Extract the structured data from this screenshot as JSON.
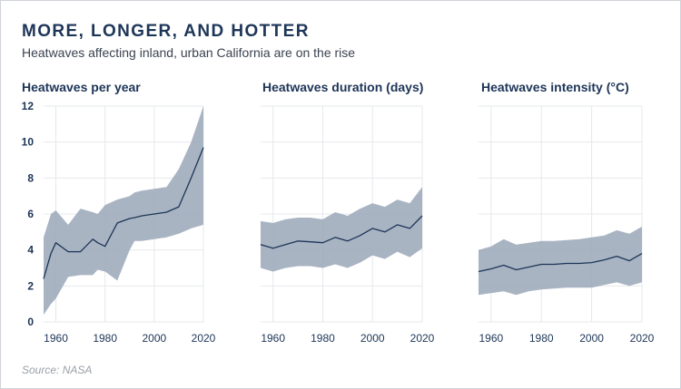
{
  "header": {
    "title": "MORE, LONGER, AND HOTTER",
    "subtitle": "Heatwaves affecting inland, urban California are on the rise"
  },
  "footer": {
    "source": "Source: NASA"
  },
  "colors": {
    "band": "#9aa7b8",
    "line": "#1d3557",
    "grid": "#e6e8eb",
    "text": "#1d3557"
  },
  "chart_data": [
    {
      "type": "area",
      "title": "Heatwaves per year",
      "xlim": [
        1955,
        2020
      ],
      "ylim": [
        0,
        12
      ],
      "xticks": [
        1960,
        1980,
        2000,
        2020
      ],
      "yticks": [
        0,
        2,
        4,
        6,
        8,
        10,
        12
      ],
      "show_yticks": true,
      "grid": true,
      "x": [
        1955,
        1958,
        1960,
        1965,
        1970,
        1975,
        1977,
        1980,
        1985,
        1990,
        1992,
        1995,
        2000,
        2005,
        2010,
        2015,
        2020
      ],
      "mean": [
        2.4,
        3.8,
        4.4,
        3.9,
        3.9,
        4.6,
        4.4,
        4.2,
        5.5,
        5.75,
        5.8,
        5.9,
        6.0,
        6.1,
        6.4,
        8.0,
        9.7
      ],
      "upper": [
        4.7,
        6.0,
        6.2,
        5.4,
        6.3,
        6.1,
        6.0,
        6.5,
        6.8,
        7.0,
        7.2,
        7.3,
        7.4,
        7.5,
        8.5,
        10.0,
        12.0
      ],
      "lower": [
        0.4,
        1.0,
        1.3,
        2.5,
        2.6,
        2.6,
        2.9,
        2.8,
        2.3,
        4.0,
        4.5,
        4.5,
        4.6,
        4.7,
        4.9,
        5.2,
        5.4
      ]
    },
    {
      "type": "area",
      "title": "Heatwaves duration (days)",
      "xlim": [
        1955,
        2020
      ],
      "ylim": [
        0,
        12
      ],
      "xticks": [
        1960,
        1980,
        2000,
        2020
      ],
      "yticks": [
        0,
        2,
        4,
        6,
        8,
        10,
        12
      ],
      "show_yticks": false,
      "grid": true,
      "x": [
        1955,
        1960,
        1965,
        1970,
        1975,
        1980,
        1985,
        1990,
        1995,
        2000,
        2005,
        2010,
        2015,
        2020
      ],
      "mean": [
        4.3,
        4.1,
        4.3,
        4.5,
        4.45,
        4.4,
        4.7,
        4.5,
        4.8,
        5.2,
        5.0,
        5.4,
        5.2,
        5.9
      ],
      "upper": [
        5.6,
        5.5,
        5.7,
        5.8,
        5.8,
        5.7,
        6.1,
        5.9,
        6.3,
        6.6,
        6.4,
        6.8,
        6.6,
        7.5
      ],
      "lower": [
        3.0,
        2.8,
        3.0,
        3.1,
        3.1,
        3.0,
        3.2,
        3.0,
        3.3,
        3.7,
        3.5,
        3.9,
        3.6,
        4.1
      ]
    },
    {
      "type": "area",
      "title": "Heatwaves intensity (°C)",
      "xlim": [
        1955,
        2020
      ],
      "ylim": [
        0,
        12
      ],
      "xticks": [
        1960,
        1980,
        2000,
        2020
      ],
      "yticks": [
        0,
        2,
        4,
        6,
        8,
        10,
        12
      ],
      "show_yticks": false,
      "grid": true,
      "x": [
        1955,
        1960,
        1965,
        1970,
        1975,
        1980,
        1985,
        1990,
        1995,
        2000,
        2005,
        2010,
        2015,
        2020
      ],
      "mean": [
        2.8,
        2.95,
        3.15,
        2.9,
        3.05,
        3.2,
        3.2,
        3.25,
        3.25,
        3.3,
        3.45,
        3.65,
        3.4,
        3.8
      ],
      "upper": [
        4.0,
        4.2,
        4.6,
        4.3,
        4.4,
        4.5,
        4.5,
        4.55,
        4.6,
        4.7,
        4.8,
        5.1,
        4.9,
        5.3
      ],
      "lower": [
        1.5,
        1.6,
        1.7,
        1.5,
        1.7,
        1.8,
        1.85,
        1.9,
        1.9,
        1.9,
        2.05,
        2.2,
        2.0,
        2.2
      ]
    }
  ]
}
